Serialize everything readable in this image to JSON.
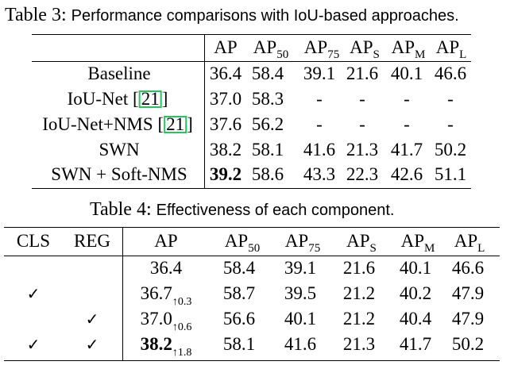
{
  "table3": {
    "caption_label": "Table 3:",
    "caption_text": "Performance comparisons with IoU-based approaches.",
    "headers": [
      {
        "base": "AP",
        "sub": ""
      },
      {
        "base": "AP",
        "sub": "50"
      },
      {
        "base": "AP",
        "sub": "75"
      },
      {
        "base": "AP",
        "sub": "S"
      },
      {
        "base": "AP",
        "sub": "M"
      },
      {
        "base": "AP",
        "sub": "L"
      }
    ],
    "rows": [
      {
        "method": "Baseline",
        "cite": "",
        "vals": [
          "36.4",
          "58.4",
          "39.1",
          "21.6",
          "40.1",
          "46.6"
        ]
      },
      {
        "method": "IoU-Net",
        "cite": "21",
        "vals": [
          "37.0",
          "58.3",
          "-",
          "-",
          "-",
          "-"
        ]
      },
      {
        "method": "IoU-Net+NMS",
        "cite": "21",
        "vals": [
          "37.6",
          "56.2",
          "-",
          "-",
          "-",
          "-"
        ]
      },
      {
        "method": "SWN",
        "cite": "",
        "vals": [
          "38.2",
          "58.1",
          "41.6",
          "21.3",
          "41.7",
          "50.2"
        ]
      },
      {
        "method": "SWN + Soft-NMS",
        "cite": "",
        "vals": [
          "39.2",
          "58.6",
          "43.3",
          "22.3",
          "42.6",
          "51.1"
        ]
      }
    ]
  },
  "table4": {
    "caption_label": "Table 4:",
    "caption_text": "Effectiveness of each component.",
    "headers": {
      "cls": "CLS",
      "reg": "REG",
      "ap": [
        {
          "base": "AP",
          "sub": ""
        },
        {
          "base": "AP",
          "sub": "50"
        },
        {
          "base": "AP",
          "sub": "75"
        },
        {
          "base": "AP",
          "sub": "S"
        },
        {
          "base": "AP",
          "sub": "M"
        },
        {
          "base": "AP",
          "sub": "L"
        }
      ]
    },
    "rows": [
      {
        "cls": "",
        "reg": "",
        "ap": "36.4",
        "gain": "",
        "vals": [
          "58.4",
          "39.1",
          "21.6",
          "40.1",
          "46.6"
        ]
      },
      {
        "cls": "✓",
        "reg": "",
        "ap": "36.7",
        "gain": "↑0.3",
        "vals": [
          "58.7",
          "39.5",
          "21.2",
          "40.2",
          "47.9"
        ]
      },
      {
        "cls": "",
        "reg": "✓",
        "ap": "37.0",
        "gain": "↑0.6",
        "vals": [
          "56.6",
          "40.1",
          "21.2",
          "40.4",
          "47.9"
        ]
      },
      {
        "cls": "✓",
        "reg": "✓",
        "ap": "38.2",
        "gain": "↑1.8",
        "vals": [
          "58.1",
          "41.6",
          "21.3",
          "41.7",
          "50.2"
        ]
      }
    ]
  }
}
